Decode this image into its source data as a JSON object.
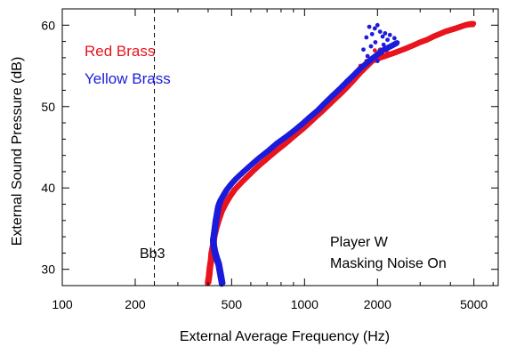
{
  "chart_data": {
    "type": "scatter",
    "xlabel": "External Average Frequency (Hz)",
    "ylabel": "External Sound Pressure (dB)",
    "x_scale": "log",
    "xlim": [
      100,
      6300
    ],
    "ylim": [
      28,
      62
    ],
    "x_ticks_labeled": [
      100,
      200,
      500,
      1000,
      2000,
      5000
    ],
    "y_ticks_labeled": [
      30,
      40,
      50,
      60
    ],
    "legend_position": "top-left",
    "colors": {
      "red": "#e8141e",
      "blue": "#1b1bdc"
    },
    "series": [
      {
        "name": "Red Brass",
        "color": "#e8141e",
        "x": [
          398,
          402,
          405,
          410,
          412,
          418,
          422,
          430,
          440,
          452,
          470,
          490,
          515,
          550,
          590,
          640,
          700,
          760,
          830,
          900,
          970,
          1040,
          1120,
          1200,
          1300,
          1400,
          1500,
          1600,
          1700,
          1800,
          1900,
          2050,
          2200,
          2400,
          2600,
          2800,
          3000,
          3200,
          3400,
          3600,
          3800,
          4000,
          4200,
          4400,
          4600,
          4800,
          4950
        ],
        "y": [
          28.3,
          29.2,
          30.2,
          31.2,
          32.0,
          33.0,
          34.0,
          35.0,
          36.0,
          37.0,
          38.0,
          38.9,
          39.8,
          40.7,
          41.6,
          42.6,
          43.6,
          44.5,
          45.4,
          46.3,
          47.1,
          47.9,
          48.8,
          49.6,
          50.6,
          51.5,
          52.4,
          53.3,
          54.2,
          54.9,
          55.6,
          56.0,
          56.3,
          56.7,
          57.1,
          57.5,
          57.9,
          58.2,
          58.6,
          58.9,
          59.2,
          59.4,
          59.6,
          59.8,
          60.0,
          60.1,
          60.1
        ]
      },
      {
        "name": "Yellow Brass",
        "color": "#1b1bdc",
        "x": [
          455,
          450,
          445,
          440,
          432,
          425,
          420,
          418,
          422,
          425,
          428,
          432,
          436,
          440,
          448,
          460,
          475,
          495,
          520,
          555,
          600,
          650,
          710,
          770,
          840,
          910,
          980,
          1050,
          1130,
          1210,
          1300,
          1400,
          1500,
          1600,
          1700,
          1800,
          1900,
          2000,
          2100,
          2200,
          2300,
          2400
        ],
        "y": [
          28.2,
          29.0,
          29.8,
          30.6,
          31.3,
          32.0,
          32.8,
          33.6,
          34.4,
          35.1,
          35.8,
          36.5,
          37.2,
          37.8,
          38.4,
          39.0,
          39.7,
          40.4,
          41.1,
          41.9,
          42.8,
          43.7,
          44.6,
          45.5,
          46.3,
          47.1,
          47.9,
          48.7,
          49.5,
          50.4,
          51.3,
          52.2,
          53.1,
          53.9,
          54.7,
          55.3,
          55.9,
          56.4,
          56.9,
          57.2,
          57.5,
          57.8
        ]
      }
    ],
    "scatter_cloud_blue": {
      "x": [
        1750,
        1800,
        1850,
        1900,
        1950,
        2000,
        2050,
        2100,
        2150,
        2200,
        1880,
        1960,
        2040,
        2120,
        2250,
        2350,
        1820,
        1920,
        2000,
        2080
      ],
      "y": [
        57.0,
        58.5,
        59.8,
        58.9,
        59.6,
        60.0,
        59.2,
        58.6,
        59.0,
        58.2,
        57.4,
        57.9,
        56.8,
        57.6,
        58.8,
        58.4,
        56.2,
        56.0,
        55.6,
        56.6
      ]
    },
    "scatter_cloud_red": {
      "x": [
        1700,
        1800,
        1900,
        2000,
        2100,
        2200,
        1750,
        1850,
        1950,
        2050
      ],
      "y": [
        55.0,
        55.6,
        55.8,
        56.1,
        56.4,
        56.6,
        54.4,
        55.2,
        56.9,
        57.0
      ]
    },
    "reference_line": {
      "x": 240,
      "label": "Bb3"
    },
    "annotations": [
      "Player W",
      "Masking Noise On"
    ]
  }
}
